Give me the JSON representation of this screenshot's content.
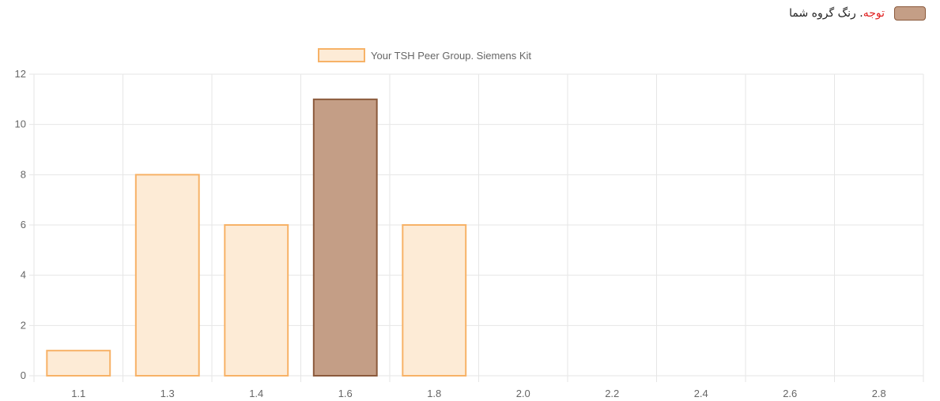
{
  "note": {
    "label": "توجه",
    "separator": ".",
    "text": " رنگ گروه شما",
    "swatch_color": "#c49e86"
  },
  "colors": {
    "peer_fill": "#fdebd6",
    "peer_border": "#f7b267",
    "your_fill": "#c49e86",
    "your_border": "#8b5a3c",
    "grid": "#e6e6e6"
  },
  "chart_data": {
    "type": "bar",
    "categories": [
      "1.1",
      "1.3",
      "1.4",
      "1.6",
      "1.8",
      "2.0",
      "2.2",
      "2.4",
      "2.6",
      "2.8"
    ],
    "series": [
      {
        "name": "Your TSH Peer Group. Siemens Kit",
        "values": [
          1,
          8,
          6,
          11,
          6,
          0,
          0,
          0,
          0,
          0
        ]
      }
    ],
    "highlight_category": "1.6",
    "ylim": [
      0,
      12
    ],
    "yticks": [
      0,
      2,
      4,
      6,
      8,
      10,
      12
    ],
    "grid": true,
    "legend": "top-center"
  }
}
